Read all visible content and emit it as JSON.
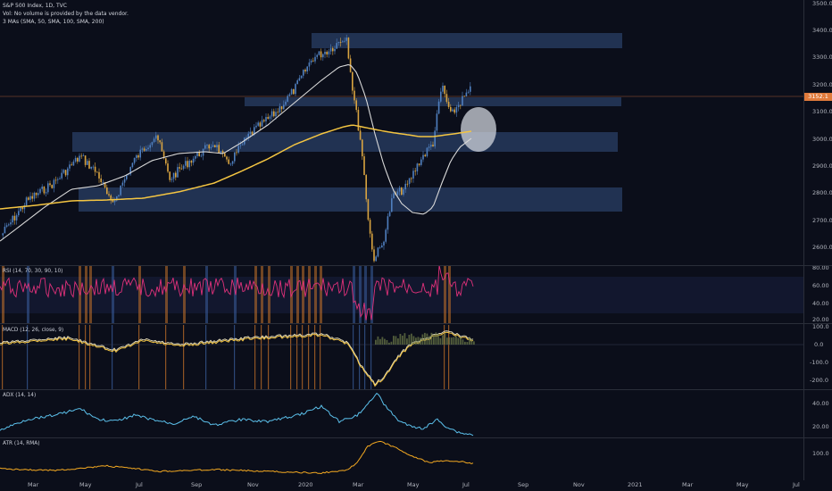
{
  "header": {
    "symbol": "S&P 500 Index, 1D, TVC",
    "volume_note": "Vol: No volume is provided by the data vendor.",
    "mas_label": "3 MAs (SMA, 50, SMA, 100, SMA, 200)"
  },
  "price_axis": [
    "3500.0",
    "3400.0",
    "3300.0",
    "3200.0",
    "3100.0",
    "3000.0",
    "2900.0",
    "2800.0",
    "2700.0",
    "2600.0"
  ],
  "last_price": "3152.1",
  "rsi": {
    "title": "RSI (14, 70, 30, 90, 10)",
    "ticks": [
      "80.00",
      "60.00",
      "40.00",
      "20.00"
    ]
  },
  "macd": {
    "title": "MACD (12, 26, close, 9)",
    "ticks": [
      "100.0",
      "0.0",
      "-100.0",
      "-200.0"
    ]
  },
  "adx": {
    "title": "ADX (14, 14)",
    "ticks": [
      "40.00",
      "20.00"
    ]
  },
  "atr": {
    "title": "ATR (14, RMA)",
    "ticks": [
      "100.0"
    ]
  },
  "time_axis": [
    "Mar",
    "May",
    "Jul",
    "Sep",
    "Nov",
    "2020",
    "Mar",
    "May",
    "Jul",
    "Sep",
    "Nov",
    "2021",
    "Mar",
    "May",
    "Jul"
  ],
  "colors": {
    "background": "#0b0e1a",
    "zone": "#2a3f66",
    "sma_fast": "#d9d9d9",
    "sma_slow": "#f4c542",
    "rsi_line": "#e0317a",
    "macd_line": "#f4c542",
    "signal_line": "#e8e0c0",
    "adx_line": "#5bc0eb",
    "atr_line": "#f4a921"
  }
}
